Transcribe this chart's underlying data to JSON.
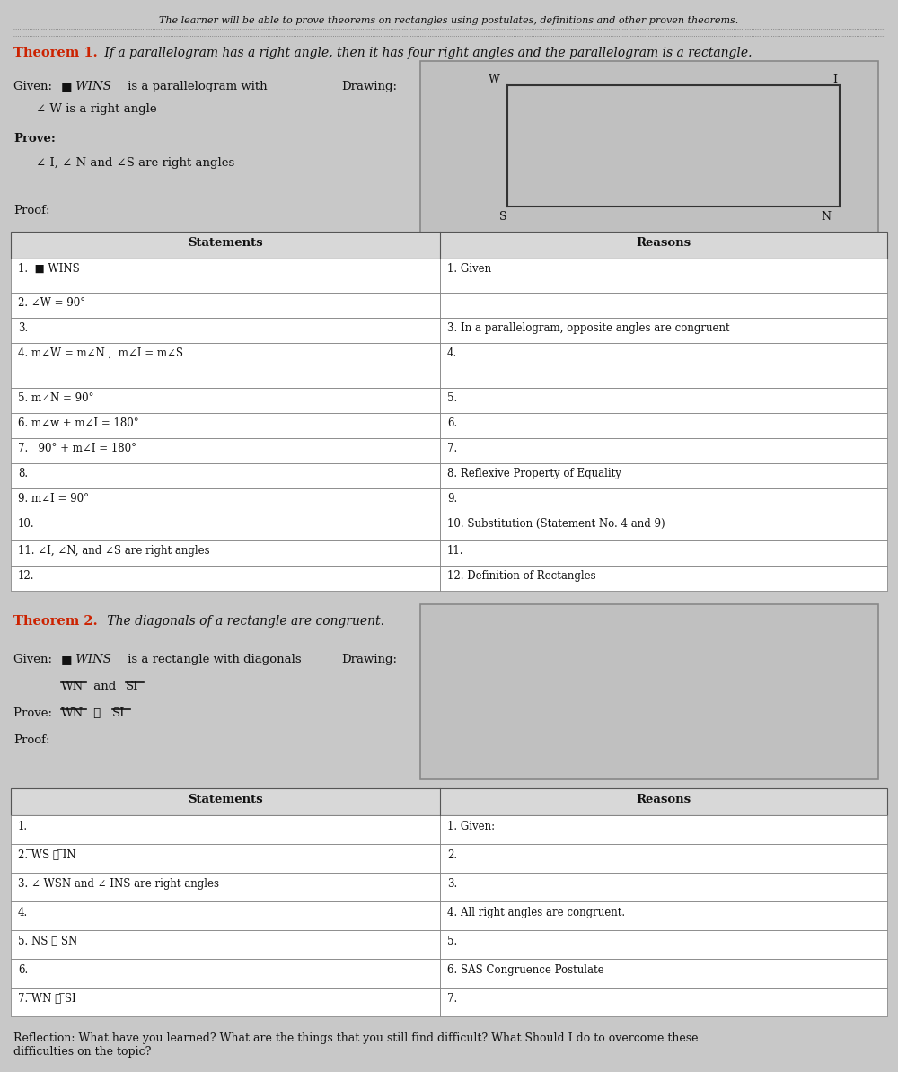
{
  "bg_color": "#c8c8c8",
  "white": "#ffffff",
  "cell_bg": "#e8e8e8",
  "red": "#cc2200",
  "black": "#111111",
  "dark_gray": "#555555",
  "title_line": "The learner will be able to prove theorems on rectangles using postulates, definitions and other proven theorems.",
  "theorem1_bold": "Theorem 1.",
  "theorem1_italic": " If a parallelogram has a right angle, then it has four right angles and the parallelogram is a rectangle.",
  "given1_sq": "■",
  "given1_italic": " WINS",
  "given1_rest": " is a parallelogram with",
  "given1_line2": "   ∠ W is a right angle",
  "prove1_label": "Prove:",
  "prove1_text": "   ∠ I, ∠ N and ∠S are right angles",
  "proof1": "Proof:",
  "drawing_label": "Drawing:",
  "table1_headers": [
    "Statements",
    "Reasons"
  ],
  "table1_rows": [
    [
      "1.  ■ WINS",
      "1. Given"
    ],
    [
      "2. ∠W = 90°",
      ""
    ],
    [
      "3.",
      "3. In a parallelogram, opposite angles are congruent"
    ],
    [
      "4. m∠W = m∠N ,  m∠I = m∠S",
      "4."
    ],
    [
      "5. m∠N = 90°",
      "5."
    ],
    [
      "6. m∠w + m∠I = 180°",
      "6."
    ],
    [
      "7.   90° + m∠I = 180°",
      "7."
    ],
    [
      "8.",
      "8. Reflexive Property of Equality"
    ],
    [
      "9. m∠I = 90°",
      "9."
    ],
    [
      "10.",
      "10. Substitution (Statement No. 4 and 9)"
    ],
    [
      "11. ∠I, ∠N, and ∠S are right angles",
      "11."
    ],
    [
      "12.",
      "12. Definition of Rectangles"
    ]
  ],
  "theorem2_bold": "Theorem 2.",
  "theorem2_italic": " The diagonals of a rectangle are congruent.",
  "given2_line1_a": "Given: ",
  "given2_line1_sq": "■",
  "given2_line1_italic": " WINS",
  "given2_line1_rest": " is a rectangle with diagonals",
  "given2_WN": "WN",
  "given2_and": " and ",
  "given2_SI": "SI",
  "prove2_label": "Prove: ",
  "prove2_WN": "WN",
  "prove2_cong": " ≅ ",
  "prove2_SI": "SI",
  "proof2": "Proof:",
  "drawing2_label": "Drawing:",
  "table2_headers": [
    "Statements",
    "Reasons"
  ],
  "table2_rows": [
    [
      "1.",
      "1. Given:"
    ],
    [
      "2. ̅WS ≅ ̅IN",
      "2."
    ],
    [
      "3. ∠ WSN and ∠ INS are right angles",
      "3."
    ],
    [
      "4.",
      "4. All right angles are congruent."
    ],
    [
      "5. ̅NS ≅ ̅SN",
      "5."
    ],
    [
      "6.",
      "6. SAS Congruence Postulate"
    ],
    [
      "7. ̅WN ≅ ̅SI",
      "7."
    ]
  ],
  "reflection": "Reflection: What have you learned? What are the things that you still find difficult? What Should I do to overcome these\ndifficulties on the topic?"
}
